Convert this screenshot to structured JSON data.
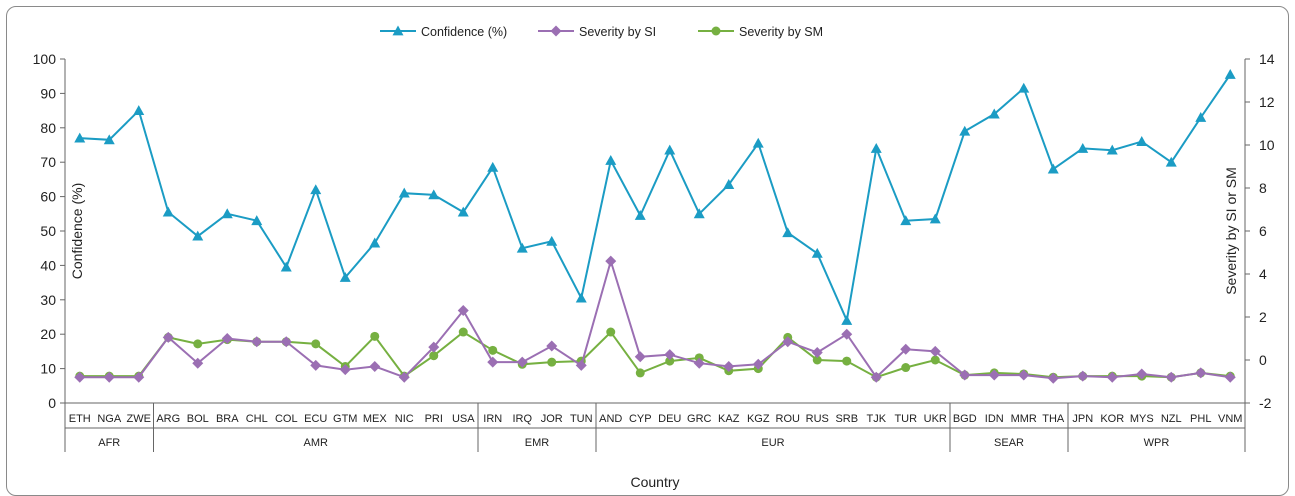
{
  "chart_data": {
    "type": "line",
    "legend_position": "top",
    "grid": false,
    "xlabel": "Country",
    "ylabel_left": "Confidence (%)",
    "ylabel_right": "Severity by SI or SM",
    "ylim_left": [
      0,
      100
    ],
    "yticks_left": [
      0,
      10,
      20,
      30,
      40,
      50,
      60,
      70,
      80,
      90,
      100
    ],
    "ylim_right": [
      -2,
      14
    ],
    "yticks_right": [
      -2,
      0,
      2,
      4,
      6,
      8,
      10,
      12,
      14
    ],
    "categories": [
      "ETH",
      "NGA",
      "ZWE",
      "ARG",
      "BOL",
      "BRA",
      "CHL",
      "COL",
      "ECU",
      "GTM",
      "MEX",
      "NIC",
      "PRI",
      "USA",
      "IRN",
      "IRQ",
      "JOR",
      "TUN",
      "AND",
      "CYP",
      "DEU",
      "GRC",
      "KAZ",
      "KGZ",
      "ROU",
      "RUS",
      "SRB",
      "TJK",
      "TUR",
      "UKR",
      "BGD",
      "IDN",
      "MMR",
      "THA",
      "JPN",
      "KOR",
      "MYS",
      "NZL",
      "PHL",
      "VNM"
    ],
    "groups": [
      {
        "label": "AFR",
        "count": 3
      },
      {
        "label": "AMR",
        "count": 11
      },
      {
        "label": "EMR",
        "count": 4
      },
      {
        "label": "EUR",
        "count": 12
      },
      {
        "label": "SEAR",
        "count": 4
      },
      {
        "label": "WPR",
        "count": 6
      }
    ],
    "series": [
      {
        "name": "Confidence (%)",
        "axis": "left",
        "color": "#1b9cc4",
        "marker": "triangle",
        "values": [
          77,
          76.5,
          85,
          55.5,
          48.5,
          55,
          53,
          39.5,
          62,
          36.5,
          46.5,
          61,
          60.5,
          55.5,
          68.5,
          45,
          47,
          30.5,
          70.5,
          54.5,
          73.5,
          55,
          63.5,
          75.5,
          49.5,
          43.5,
          24,
          74,
          53,
          53.5,
          79,
          84,
          91.5,
          68,
          74,
          73.5,
          76,
          70,
          83,
          95.5
        ]
      },
      {
        "name": "Severity by SI",
        "axis": "right",
        "color": "#9b6fb3",
        "marker": "diamond",
        "values": [
          -0.8,
          -0.8,
          -0.8,
          1.05,
          -0.15,
          1.0,
          0.85,
          0.85,
          -0.25,
          -0.45,
          -0.3,
          -0.8,
          0.6,
          2.3,
          -0.1,
          -0.1,
          0.65,
          -0.25,
          4.6,
          0.15,
          0.25,
          -0.15,
          -0.3,
          -0.2,
          0.85,
          0.35,
          1.2,
          -0.8,
          0.5,
          0.4,
          -0.7,
          -0.7,
          -0.7,
          -0.85,
          -0.75,
          -0.8,
          -0.65,
          -0.8,
          -0.6,
          -0.8
        ]
      },
      {
        "name": "Severity by SM",
        "axis": "right",
        "color": "#76b041",
        "marker": "circle",
        "values": [
          -0.75,
          -0.75,
          -0.75,
          1.05,
          0.75,
          0.95,
          0.85,
          0.85,
          0.75,
          -0.3,
          1.1,
          -0.75,
          0.2,
          1.3,
          0.45,
          -0.2,
          -0.1,
          -0.05,
          1.3,
          -0.6,
          -0.05,
          0.1,
          -0.5,
          -0.4,
          1.05,
          0.0,
          -0.05,
          -0.8,
          -0.35,
          0.0,
          -0.7,
          -0.6,
          -0.65,
          -0.8,
          -0.75,
          -0.75,
          -0.75,
          -0.8,
          -0.6,
          -0.75
        ]
      }
    ]
  }
}
